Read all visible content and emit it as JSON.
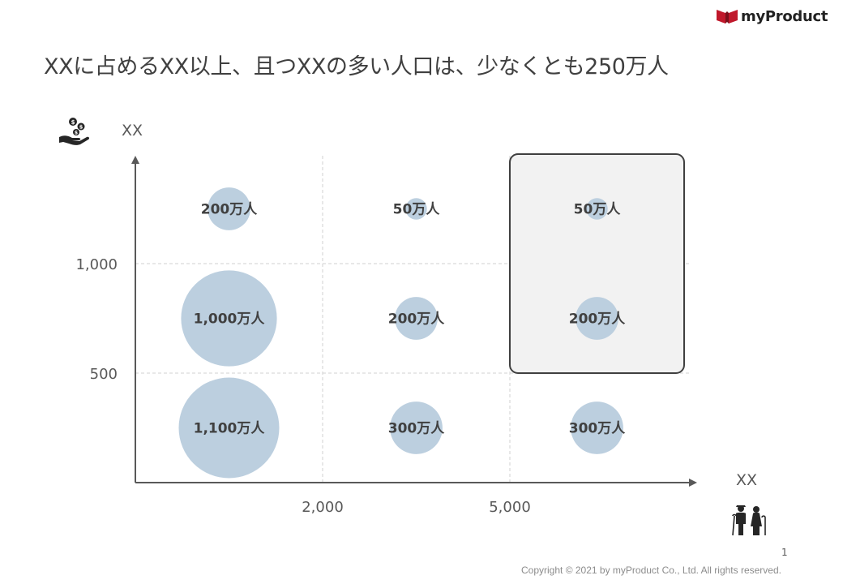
{
  "brand": {
    "name": "myProduct",
    "mark_color": "#c0182b"
  },
  "title": "XXに占めるXX以上、且つXXの多い人口は、少なくとも250万人",
  "icons": {
    "y_axis": "money-hand-icon",
    "x_axis": "elderly-couple-icon"
  },
  "chart_data": {
    "type": "bubble-grid",
    "xlabel": "XX",
    "ylabel": "XX",
    "x_ticks": [
      "2,000",
      "5,000"
    ],
    "y_ticks": [
      "500",
      "1,000"
    ],
    "grid": true,
    "bubble_color": "#bccfdf",
    "highlight_fill": "#f2f2f2",
    "highlight_stroke": "#404040",
    "highlight": {
      "columns": [
        2
      ],
      "rows": [
        1,
        2
      ]
    },
    "cells": [
      {
        "col": 0,
        "row": 0,
        "value": 1100,
        "label": "1,100万人"
      },
      {
        "col": 1,
        "row": 0,
        "value": 300,
        "label": "300万人"
      },
      {
        "col": 2,
        "row": 0,
        "value": 300,
        "label": "300万人"
      },
      {
        "col": 0,
        "row": 1,
        "value": 1000,
        "label": "1,000万人"
      },
      {
        "col": 1,
        "row": 1,
        "value": 200,
        "label": "200万人"
      },
      {
        "col": 2,
        "row": 1,
        "value": 200,
        "label": "200万人"
      },
      {
        "col": 0,
        "row": 2,
        "value": 200,
        "label": "200万人"
      },
      {
        "col": 1,
        "row": 2,
        "value": 50,
        "label": "50万人"
      },
      {
        "col": 2,
        "row": 2,
        "value": 50,
        "label": "50万人"
      }
    ]
  },
  "footer": {
    "page_number": "1",
    "copyright": "Copyright © 2021 by myProduct Co., Ltd.  All rights reserved."
  }
}
